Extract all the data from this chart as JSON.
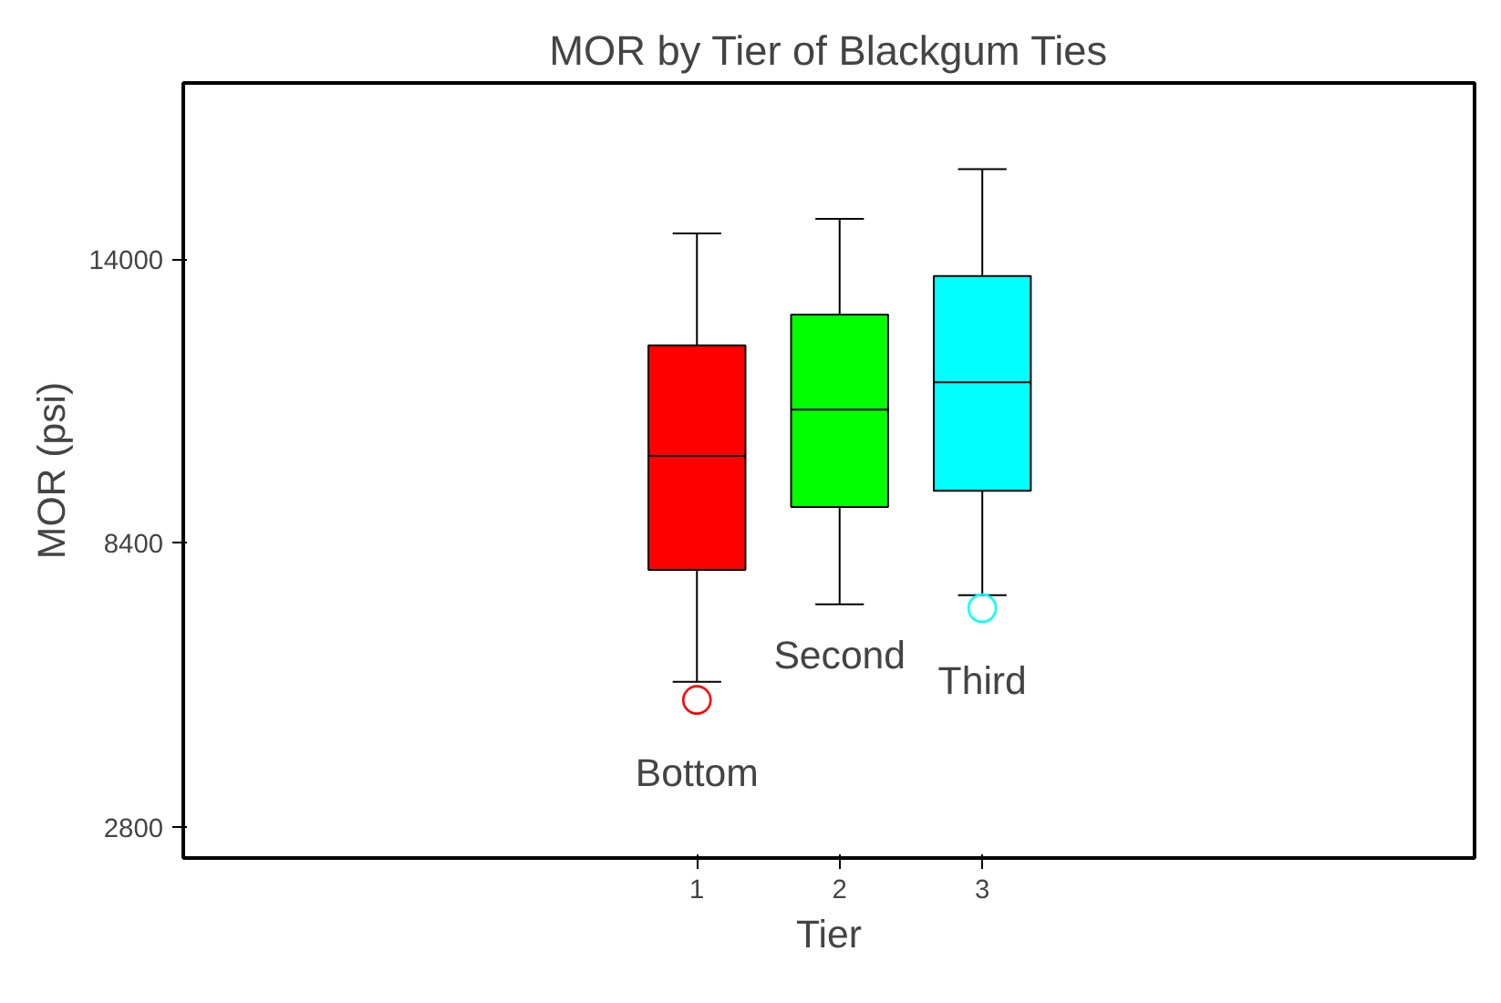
{
  "chart_data": {
    "type": "box",
    "title": "MOR by Tier of Blackgum Ties",
    "xlabel": "Tier",
    "ylabel": "MOR (psi)",
    "x": [
      1,
      2,
      3
    ],
    "colors": [
      "#ff0000",
      "#00ff00",
      "#00ffff"
    ],
    "boxes": [
      {
        "low": 5660,
        "q1": 7870,
        "median": 10120,
        "q3": 12300,
        "high": 14510,
        "outliers": [
          5300
        ]
      },
      {
        "low": 7190,
        "q1": 9110,
        "median": 11030,
        "q3": 12910,
        "high": 14800
      },
      {
        "low": 7370,
        "q1": 9430,
        "median": 11570,
        "q3": 13670,
        "high": 15780,
        "outliers": [
          7110
        ]
      }
    ],
    "xlim": [
      -2.6,
      6.45
    ],
    "ylim": [
      2180,
      17480
    ],
    "xticks": [
      1,
      2,
      3
    ],
    "yticks": [
      2800,
      8400,
      14000
    ],
    "grid": false,
    "annotations": [
      "Bottom",
      "Second",
      "Third"
    ]
  }
}
